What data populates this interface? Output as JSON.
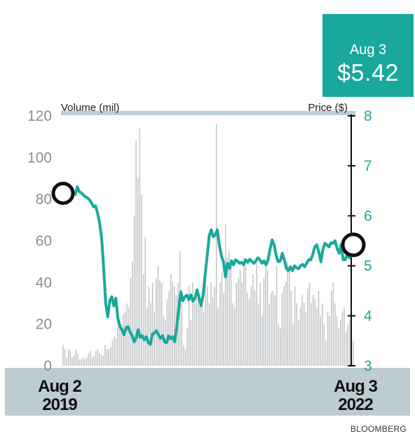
{
  "callout": {
    "date": "Aug 3",
    "price": "$5.42"
  },
  "source": "BLOOMBERG",
  "colors": {
    "price_line": "#19a89b",
    "volume_bars": "#c4c7ca",
    "band": "#bdcbd2",
    "callout_bg": "#19a89b",
    "left_axis_text": "#8a8f93",
    "right_axis_text": "#19a89b"
  },
  "chart_data": {
    "type": "bar+line",
    "left_axis": {
      "label": "Volume (mil)",
      "ticks": [
        "0",
        "20",
        "40",
        "60",
        "80",
        "100",
        "120"
      ],
      "range": [
        0,
        120
      ]
    },
    "right_axis": {
      "label": "Price ($)",
      "ticks": [
        "3",
        "4",
        "5",
        "6",
        "7",
        "8"
      ],
      "range": [
        3,
        8
      ]
    },
    "x_labels": [
      {
        "line1": "Aug 2",
        "line2": "2019"
      },
      {
        "line1": "Aug 3",
        "line2": "2022"
      }
    ],
    "price": [
      6.45,
      6.47,
      6.44,
      6.5,
      6.38,
      6.46,
      6.43,
      6.58,
      6.48,
      6.46,
      6.42,
      6.38,
      6.36,
      6.32,
      6.26,
      6.18,
      6.2,
      6.05,
      5.85,
      5.55,
      4.95,
      4.25,
      3.98,
      4.3,
      4.38,
      4.2,
      4.35,
      3.95,
      3.78,
      3.72,
      3.62,
      3.76,
      3.78,
      3.68,
      3.6,
      3.48,
      3.56,
      3.72,
      3.57,
      3.6,
      3.52,
      3.58,
      3.46,
      3.43,
      3.63,
      3.66,
      3.7,
      3.62,
      3.55,
      3.6,
      3.48,
      3.46,
      3.6,
      3.54,
      3.58,
      3.48,
      3.78,
      4.14,
      4.48,
      4.3,
      4.38,
      4.41,
      4.32,
      4.42,
      4.29,
      4.36,
      4.52,
      4.36,
      4.2,
      4.42,
      4.82,
      5.2,
      5.6,
      5.72,
      5.58,
      5.62,
      5.72,
      5.42,
      5.2,
      5.08,
      4.78,
      5.05,
      4.95,
      5.1,
      5.02,
      5.12,
      5.09,
      5.05,
      5.07,
      5.02,
      5.12,
      5.07,
      5.13,
      5.09,
      5.05,
      5.1,
      5.16,
      5.12,
      5.05,
      5.1,
      5.02,
      5.12,
      5.34,
      5.52,
      5.42,
      5.2,
      5.08,
      5.1,
      5.25,
      5.12,
      4.95,
      4.9,
      4.98,
      4.9,
      5.0,
      4.96,
      4.94,
      5.0,
      5.03,
      4.98,
      5.05,
      5.12,
      5.12,
      5.22,
      5.38,
      5.42,
      5.28,
      5.08,
      5.32,
      5.45,
      5.42,
      5.38,
      5.46,
      5.45,
      5.5,
      5.35,
      5.25,
      5.42,
      5.12,
      5.12,
      5.25,
      5.16,
      5.2,
      5.42
    ],
    "volume": [
      10,
      8,
      4,
      8,
      7,
      4,
      5,
      8,
      6,
      3,
      3,
      4,
      3,
      4,
      6,
      7,
      4,
      5,
      7,
      8,
      6,
      5,
      5,
      10,
      8,
      8,
      9,
      12,
      14,
      13,
      18,
      22,
      20,
      25,
      26,
      30,
      28,
      42,
      50,
      72,
      108,
      90,
      114,
      82,
      44,
      62,
      28,
      38,
      30,
      40,
      26,
      42,
      48,
      41,
      40,
      24,
      22,
      32,
      36,
      44,
      40,
      38,
      34,
      40,
      55,
      30,
      10,
      8,
      18,
      38,
      22,
      40,
      30,
      34,
      36,
      30,
      28,
      26,
      46,
      38,
      30,
      40,
      33,
      38,
      116,
      28,
      40,
      45,
      35,
      68,
      52,
      55,
      48,
      30,
      28,
      40,
      42,
      46,
      40,
      52,
      48,
      35,
      32,
      38,
      44,
      36,
      50,
      30,
      40,
      24,
      42,
      50,
      46,
      30,
      35,
      36,
      34,
      48,
      20,
      18,
      35,
      38,
      40,
      50,
      46,
      36,
      20,
      38,
      30,
      22,
      28,
      34,
      30,
      26,
      37,
      40,
      30,
      34,
      32,
      28,
      36,
      24,
      30,
      20,
      12,
      26,
      24,
      36,
      40,
      30,
      24,
      18,
      22,
      26,
      28,
      16,
      20,
      22,
      14,
      12
    ]
  }
}
